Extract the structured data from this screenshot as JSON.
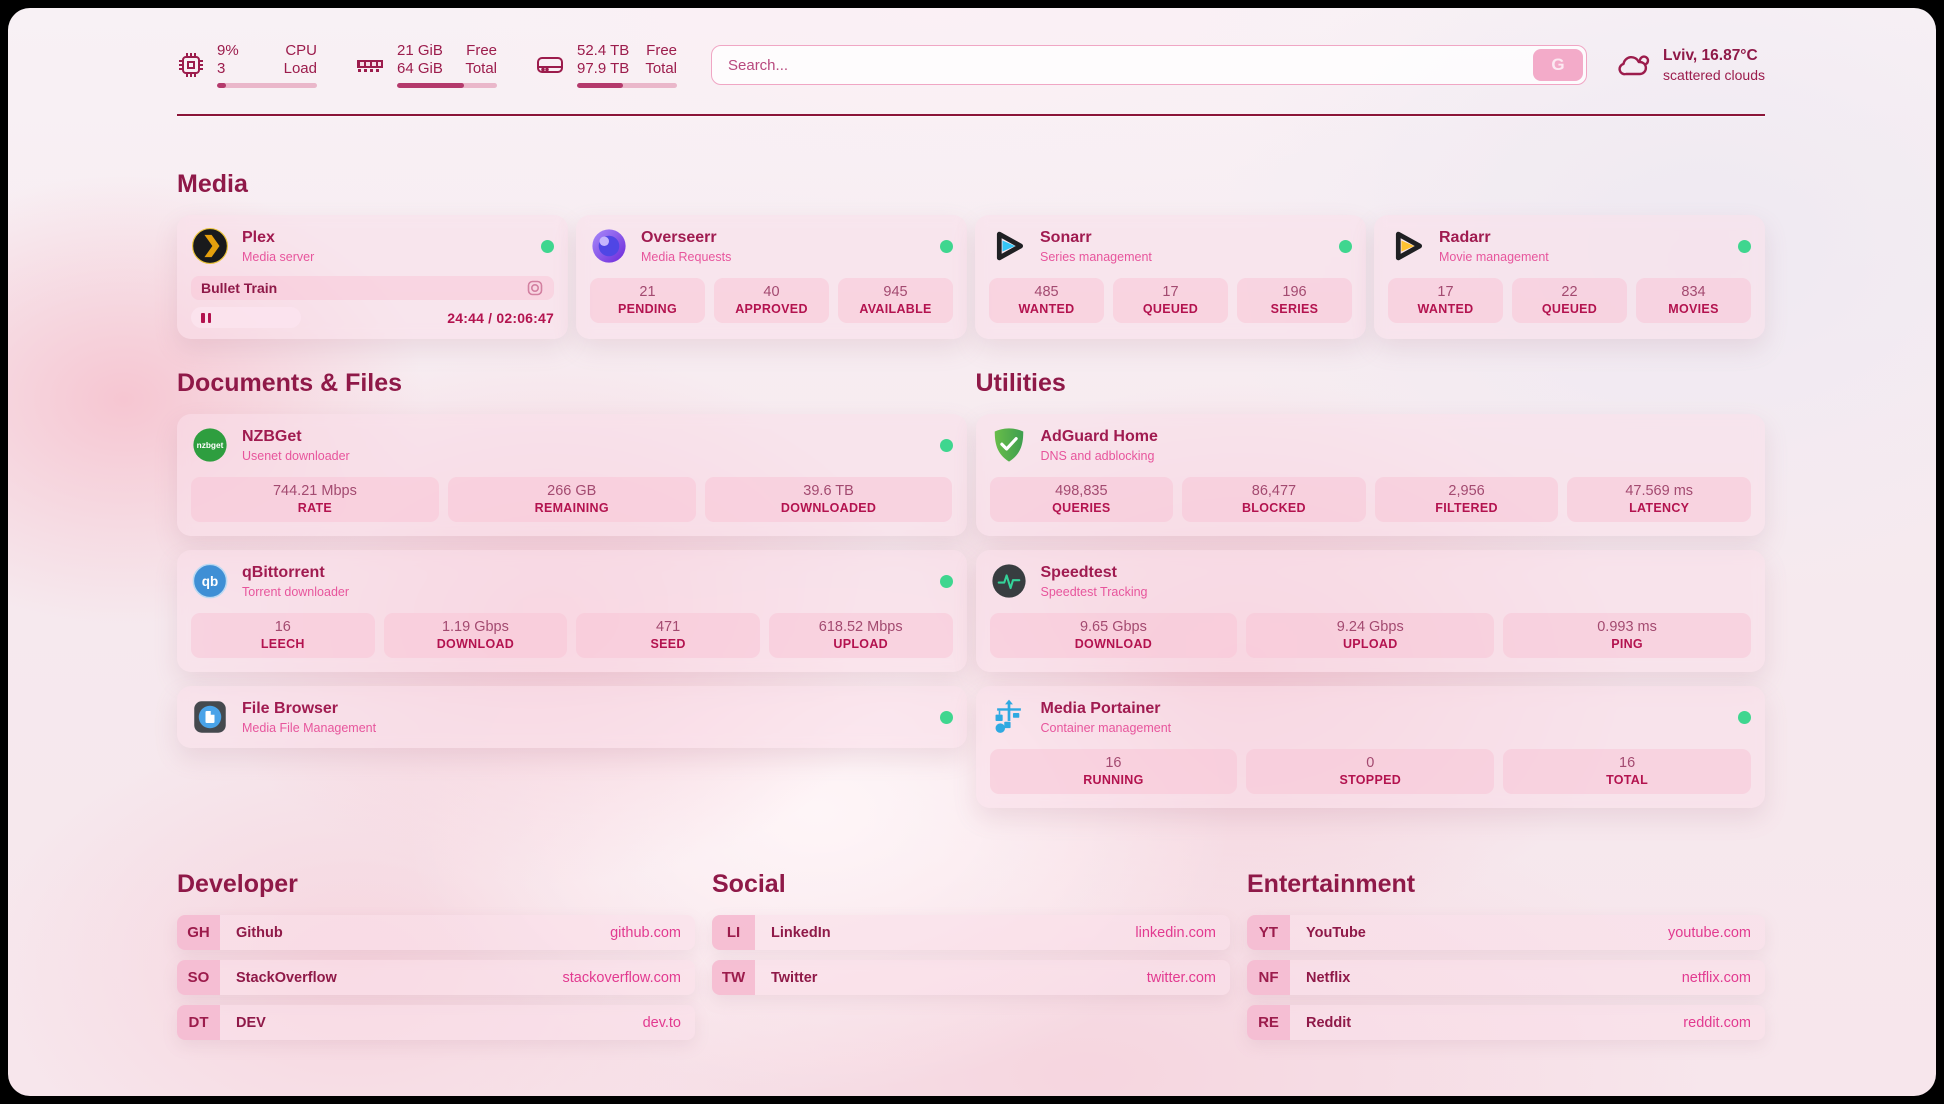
{
  "theme": {
    "accent_dark": "#8f1948",
    "accent": "#b3134f",
    "accent_pink": "#e7559c",
    "status_online": "#3fd68f",
    "card_bg": "rgba(250,223,233,0.55)",
    "divider": "#8b1538"
  },
  "header": {
    "cpu": {
      "icon": "cpu-icon",
      "value_top": "9%",
      "value_bottom": "3",
      "label_top": "CPU",
      "label_bottom": "Load",
      "progress_pct": 9
    },
    "ram": {
      "icon": "ram-icon",
      "value_top": "21 GiB",
      "value_bottom": "64 GiB",
      "label_top": "Free",
      "label_bottom": "Total",
      "progress_pct": 67
    },
    "disk": {
      "icon": "disk-icon",
      "value_top": "52.4 TB",
      "value_bottom": "97.9 TB",
      "label_top": "Free",
      "label_bottom": "Total",
      "progress_pct": 46
    },
    "search": {
      "placeholder": "Search...",
      "button_label": "G"
    },
    "weather": {
      "icon": "cloud-icon",
      "location": "Lviv, 16.87°C",
      "condition": "scattered clouds"
    }
  },
  "media": {
    "title": "Media",
    "cards": [
      {
        "icon": "plex-icon",
        "name": "Plex",
        "desc": "Media server",
        "online": true,
        "now_playing": {
          "title": "Bullet Train",
          "time": "24:44 / 02:06:47"
        }
      },
      {
        "icon": "overseerr-icon",
        "name": "Overseerr",
        "desc": "Media Requests",
        "online": true,
        "stats": [
          {
            "value": "21",
            "label": "PENDING"
          },
          {
            "value": "40",
            "label": "APPROVED"
          },
          {
            "value": "945",
            "label": "AVAILABLE"
          }
        ]
      },
      {
        "icon": "sonarr-icon",
        "name": "Sonarr",
        "desc": "Series management",
        "online": true,
        "stats": [
          {
            "value": "485",
            "label": "WANTED"
          },
          {
            "value": "17",
            "label": "QUEUED"
          },
          {
            "value": "196",
            "label": "SERIES"
          }
        ]
      },
      {
        "icon": "radarr-icon",
        "name": "Radarr",
        "desc": "Movie management",
        "online": true,
        "stats": [
          {
            "value": "17",
            "label": "WANTED"
          },
          {
            "value": "22",
            "label": "QUEUED"
          },
          {
            "value": "834",
            "label": "MOVIES"
          }
        ]
      }
    ]
  },
  "documents": {
    "title": "Documents & Files",
    "cards": [
      {
        "icon": "nzbget-icon",
        "name": "NZBGet",
        "desc": "Usenet downloader",
        "online": true,
        "stats": [
          {
            "value": "744.21 Mbps",
            "label": "RATE"
          },
          {
            "value": "266 GB",
            "label": "REMAINING"
          },
          {
            "value": "39.6 TB",
            "label": "DOWNLOADED"
          }
        ]
      },
      {
        "icon": "qbittorrent-icon",
        "name": "qBittorrent",
        "desc": "Torrent downloader",
        "online": true,
        "stats": [
          {
            "value": "16",
            "label": "LEECH"
          },
          {
            "value": "1.19 Gbps",
            "label": "DOWNLOAD"
          },
          {
            "value": "471",
            "label": "SEED"
          },
          {
            "value": "618.52 Mbps",
            "label": "UPLOAD"
          }
        ]
      },
      {
        "icon": "filebrowser-icon",
        "name": "File Browser",
        "desc": "Media File Management",
        "online": true
      }
    ]
  },
  "utilities": {
    "title": "Utilities",
    "cards": [
      {
        "icon": "adguard-icon",
        "name": "AdGuard Home",
        "desc": "DNS and adblocking",
        "online": false,
        "stats": [
          {
            "value": "498,835",
            "label": "QUERIES"
          },
          {
            "value": "86,477",
            "label": "BLOCKED"
          },
          {
            "value": "2,956",
            "label": "FILTERED"
          },
          {
            "value": "47.569 ms",
            "label": "LATENCY"
          }
        ]
      },
      {
        "icon": "speedtest-icon",
        "name": "Speedtest",
        "desc": "Speedtest Tracking",
        "online": false,
        "stats": [
          {
            "value": "9.65 Gbps",
            "label": "DOWNLOAD"
          },
          {
            "value": "9.24 Gbps",
            "label": "UPLOAD"
          },
          {
            "value": "0.993 ms",
            "label": "PING"
          }
        ]
      },
      {
        "icon": "portainer-icon",
        "name": "Media Portainer",
        "desc": "Container management",
        "online": true,
        "stats": [
          {
            "value": "16",
            "label": "RUNNING"
          },
          {
            "value": "0",
            "label": "STOPPED"
          },
          {
            "value": "16",
            "label": "TOTAL"
          }
        ]
      }
    ]
  },
  "dev": {
    "title": "Developer",
    "items": [
      {
        "abbr": "GH",
        "name": "Github",
        "url": "github.com"
      },
      {
        "abbr": "SO",
        "name": "StackOverflow",
        "url": "stackoverflow.com"
      },
      {
        "abbr": "DT",
        "name": "DEV",
        "url": "dev.to"
      }
    ]
  },
  "social": {
    "title": "Social",
    "items": [
      {
        "abbr": "LI",
        "name": "LinkedIn",
        "url": "linkedin.com"
      },
      {
        "abbr": "TW",
        "name": "Twitter",
        "url": "twitter.com"
      }
    ]
  },
  "ent": {
    "title": "Entertainment",
    "items": [
      {
        "abbr": "YT",
        "name": "YouTube",
        "url": "youtube.com"
      },
      {
        "abbr": "NF",
        "name": "Netflix",
        "url": "netflix.com"
      },
      {
        "abbr": "RE",
        "name": "Reddit",
        "url": "reddit.com"
      }
    ]
  }
}
